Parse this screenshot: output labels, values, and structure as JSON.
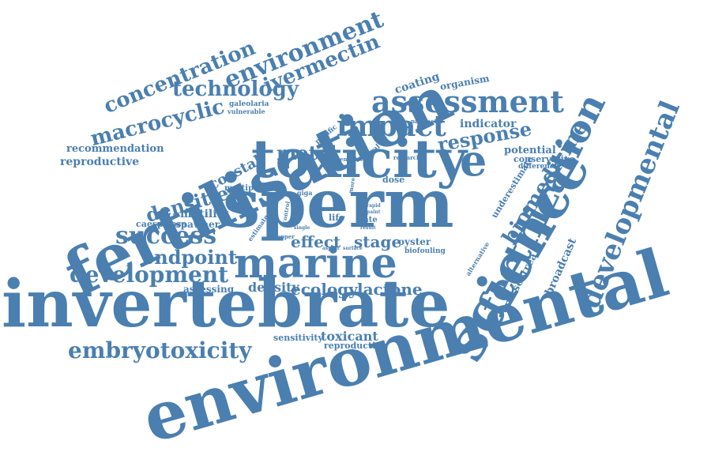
{
  "color": "#4a7fb0",
  "words": [
    "environmental",
    "invertebrate",
    "fertilisation",
    "sperm",
    "toxicity",
    "science",
    "marine",
    "fertilization",
    "developmental",
    "assessment",
    "impact",
    "environment",
    "ivermectin",
    "concentration",
    "technology",
    "macrocyclic",
    "embryotoxicity",
    "development",
    "success",
    "endpoint",
    "densities",
    "biomedicine",
    "response",
    "metal",
    "coastal",
    "effect",
    "stage",
    "ecology",
    "lactone",
    "density",
    "toxicant",
    "sensitivity",
    "reproduction",
    "assessing",
    "reproductive",
    "recommendation",
    "motility",
    "spawner",
    "caespitosa",
    "multiple",
    "coating",
    "organism",
    "indicator",
    "potential",
    "conservative",
    "difference",
    "underestimate",
    "broadcast",
    "crassostrea",
    "alternative",
    "oyster",
    "biofouling",
    "galeolaria",
    "vulnerable",
    "pacific",
    "parameter",
    "larval",
    "sensitive",
    "research",
    "dose",
    "fate",
    "paint",
    "rapid",
    "result",
    "life",
    "copper",
    "single",
    "surface",
    "aspect",
    "control",
    "estimate",
    "giga",
    "more",
    "e"
  ]
}
